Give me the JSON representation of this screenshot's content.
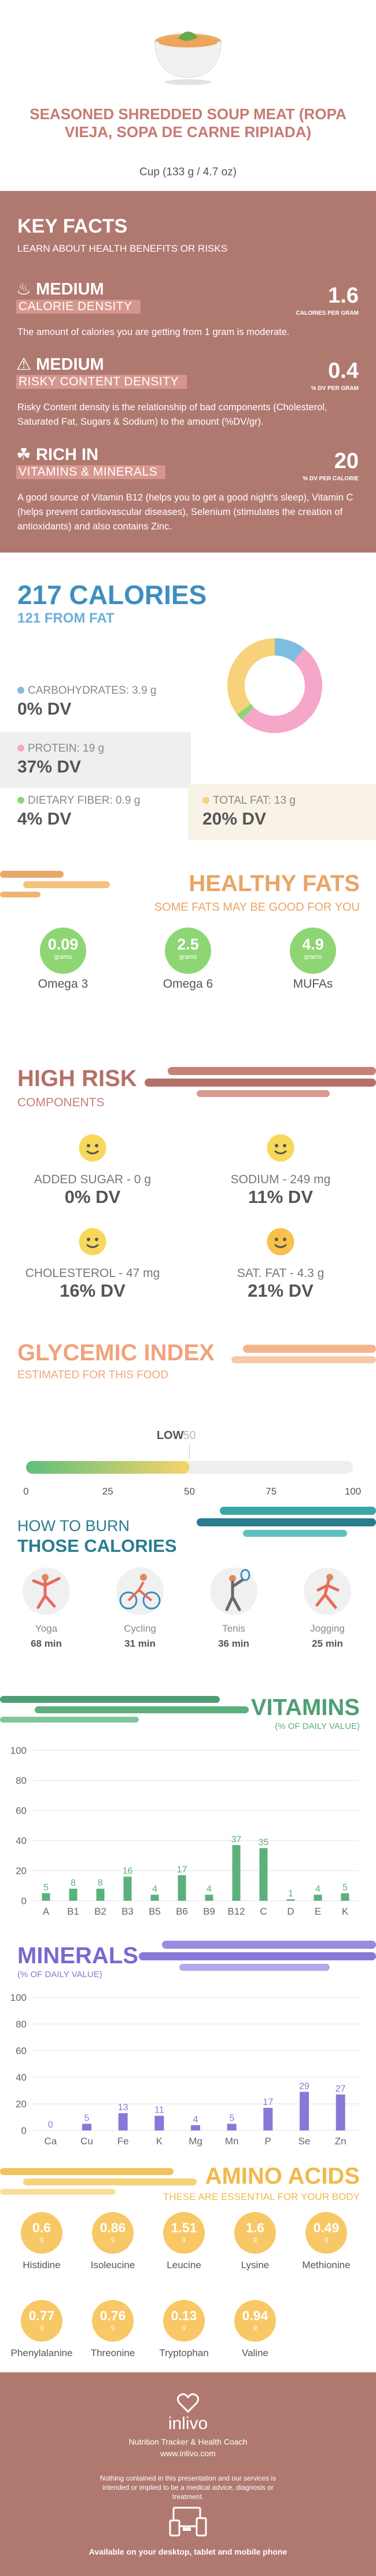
{
  "header": {
    "title": "SEASONED SHREDDED SOUP MEAT (ROPA VIEJA, SOPA DE CARNE RIPIADA)",
    "serving": "Cup (133 g / 4.7 oz)"
  },
  "key_facts": {
    "title": "KEY FACTS",
    "subtitle": "LEARN ABOUT HEALTH BENEFITS OR RISKS",
    "facts": [
      {
        "level": "MEDIUM",
        "label": "CALORIE DENSITY",
        "value": "1.6",
        "unit": "CALORIES PER GRAM",
        "desc": "The amount of calories you are getting from 1 gram is moderate.",
        "icon": "flame-icon"
      },
      {
        "level": "MEDIUM",
        "label": "RISKY CONTENT DENSITY",
        "value": "0.4",
        "unit": "% DV PER GRAM",
        "desc": "Risky Content density is the relationship of bad components (Cholesterol, Saturated Fat, Sugars & Sodium) to the amount (%DV/gr).",
        "icon": "warning-icon"
      },
      {
        "level": "RICH IN",
        "label": "VITAMINS & MINERALS",
        "value": "20",
        "unit": "% DV PER CALORIE",
        "desc": "A good source of Vitamin B12 (helps you to get a good night's sleep), Vitamin C (helps prevent cardiovascular diseases), Selenium (stimulates the creation of antioxidants) and also contains Zinc.",
        "icon": "leaf-icon"
      }
    ]
  },
  "calories": {
    "title": "217 CALORIES",
    "from_fat": "121 FROM FAT",
    "carbs": {
      "label": "CARBOHYDRATES: 3.9 g",
      "dv": "0% DV",
      "color": "#7fbde0"
    },
    "protein": {
      "label": "PROTEIN: 19 g",
      "dv": "37% DV",
      "color": "#f6a6c9"
    },
    "fiber": {
      "label": "DIETARY FIBER: 0.9 g",
      "dv": "4% DV",
      "color": "#8ed673"
    },
    "fat": {
      "label": "TOTAL FAT: 13 g",
      "dv": "20% DV",
      "color": "#f7d27a"
    },
    "donut": [
      {
        "name": "carbs",
        "value": 3.9,
        "color": "#7fbde0"
      },
      {
        "name": "protein",
        "value": 19,
        "color": "#f6a6c9"
      },
      {
        "name": "fiber",
        "value": 0.9,
        "color": "#8ed673"
      },
      {
        "name": "fat",
        "value": 13,
        "color": "#f7d27a"
      }
    ]
  },
  "healthy_fats": {
    "title": "HEALTHY FATS",
    "subtitle": "SOME FATS MAY BE GOOD FOR YOU",
    "items": [
      {
        "value": "0.09",
        "unit": "grams",
        "label": "Omega 3"
      },
      {
        "value": "2.5",
        "unit": "grams",
        "label": "Omega 6"
      },
      {
        "value": "4.9",
        "unit": "grams",
        "label": "MUFAs"
      }
    ]
  },
  "high_risk": {
    "title": "HIGH RISK",
    "subtitle": "COMPONENTS",
    "items": [
      {
        "label": "ADDED SUGAR - 0 g",
        "dv": "0% DV",
        "color": "#f7d85a"
      },
      {
        "label": "SODIUM - 249 mg",
        "dv": "11% DV",
        "color": "#f7d85a"
      },
      {
        "label": "CHOLESTEROL - 47 mg",
        "dv": "16% DV",
        "color": "#f7d85a"
      },
      {
        "label": "SAT. FAT - 4.3 g",
        "dv": "21% DV",
        "color": "#f7c14a"
      }
    ]
  },
  "glycemic": {
    "title": "GLYCEMIC INDEX",
    "subtitle": "ESTIMATED FOR THIS FOOD",
    "level": "LOW",
    "value": 50,
    "value_label": "50",
    "ticks": [
      "0",
      "25",
      "50",
      "75",
      "100"
    ]
  },
  "burn": {
    "title1": "HOW TO BURN",
    "title2": "THOSE CALORIES",
    "activities": [
      {
        "name": "Yoga",
        "time": "68 min"
      },
      {
        "name": "Cycling",
        "time": "31 min"
      },
      {
        "name": "Tenis",
        "time": "36 min"
      },
      {
        "name": "Jogging",
        "time": "25 min"
      }
    ]
  },
  "vitamins": {
    "title": "VITAMINS",
    "subtitle": "(% OF DAILY VALUE)",
    "chart_data": {
      "type": "bar",
      "categories": [
        "A",
        "B1",
        "B2",
        "B3",
        "B5",
        "B6",
        "B9",
        "B12",
        "C",
        "D",
        "E",
        "K"
      ],
      "values": [
        5,
        8,
        8,
        16,
        4,
        17,
        4,
        37,
        35,
        1,
        4,
        5
      ],
      "ylim": [
        0,
        100
      ],
      "yticks": [
        "0",
        "20",
        "40",
        "60",
        "80",
        "100"
      ],
      "color": "#5bb07c"
    }
  },
  "minerals": {
    "title": "MINERALS",
    "subtitle": "(% OF DAILY VALUE)",
    "chart_data": {
      "type": "bar",
      "categories": [
        "Ca",
        "Cu",
        "Fe",
        "K",
        "Mg",
        "Mn",
        "P",
        "Se",
        "Zn"
      ],
      "values": [
        0,
        5,
        13,
        11,
        4,
        5,
        17,
        29,
        27
      ],
      "ylim": [
        0,
        100
      ],
      "yticks": [
        "0",
        "20",
        "40",
        "60",
        "80",
        "100"
      ],
      "color": "#8878d8"
    }
  },
  "amino": {
    "title": "AMINO ACIDS",
    "subtitle": "THESE ARE ESSENTIAL FOR YOUR BODY",
    "items": [
      {
        "value": "0.6",
        "unit": "g",
        "label": "Histidine"
      },
      {
        "value": "0.86",
        "unit": "g",
        "label": "Isoleucine"
      },
      {
        "value": "1.51",
        "unit": "g",
        "label": "Leucine"
      },
      {
        "value": "1.6",
        "unit": "g",
        "label": "Lysine"
      },
      {
        "value": "0.49",
        "unit": "g",
        "label": "Methionine"
      },
      {
        "value": "0.77",
        "unit": "g",
        "label": "Phenylalanine"
      },
      {
        "value": "0.76",
        "unit": "g",
        "label": "Threonine"
      },
      {
        "value": "0.13",
        "unit": "g",
        "label": "Tryptophan"
      },
      {
        "value": "0.94",
        "unit": "g",
        "label": "Valine"
      }
    ]
  },
  "footer": {
    "brand": "inlivo",
    "tagline": "Nutrition Tracker & Health Coach",
    "url": "www.inlivo.com",
    "disclaimer": "Nothing contained in this presentation and our services is intended or implied to be a medical advice, diagnosis or treatment.",
    "available": "Available on your desktop, tablet and mobile phone"
  }
}
